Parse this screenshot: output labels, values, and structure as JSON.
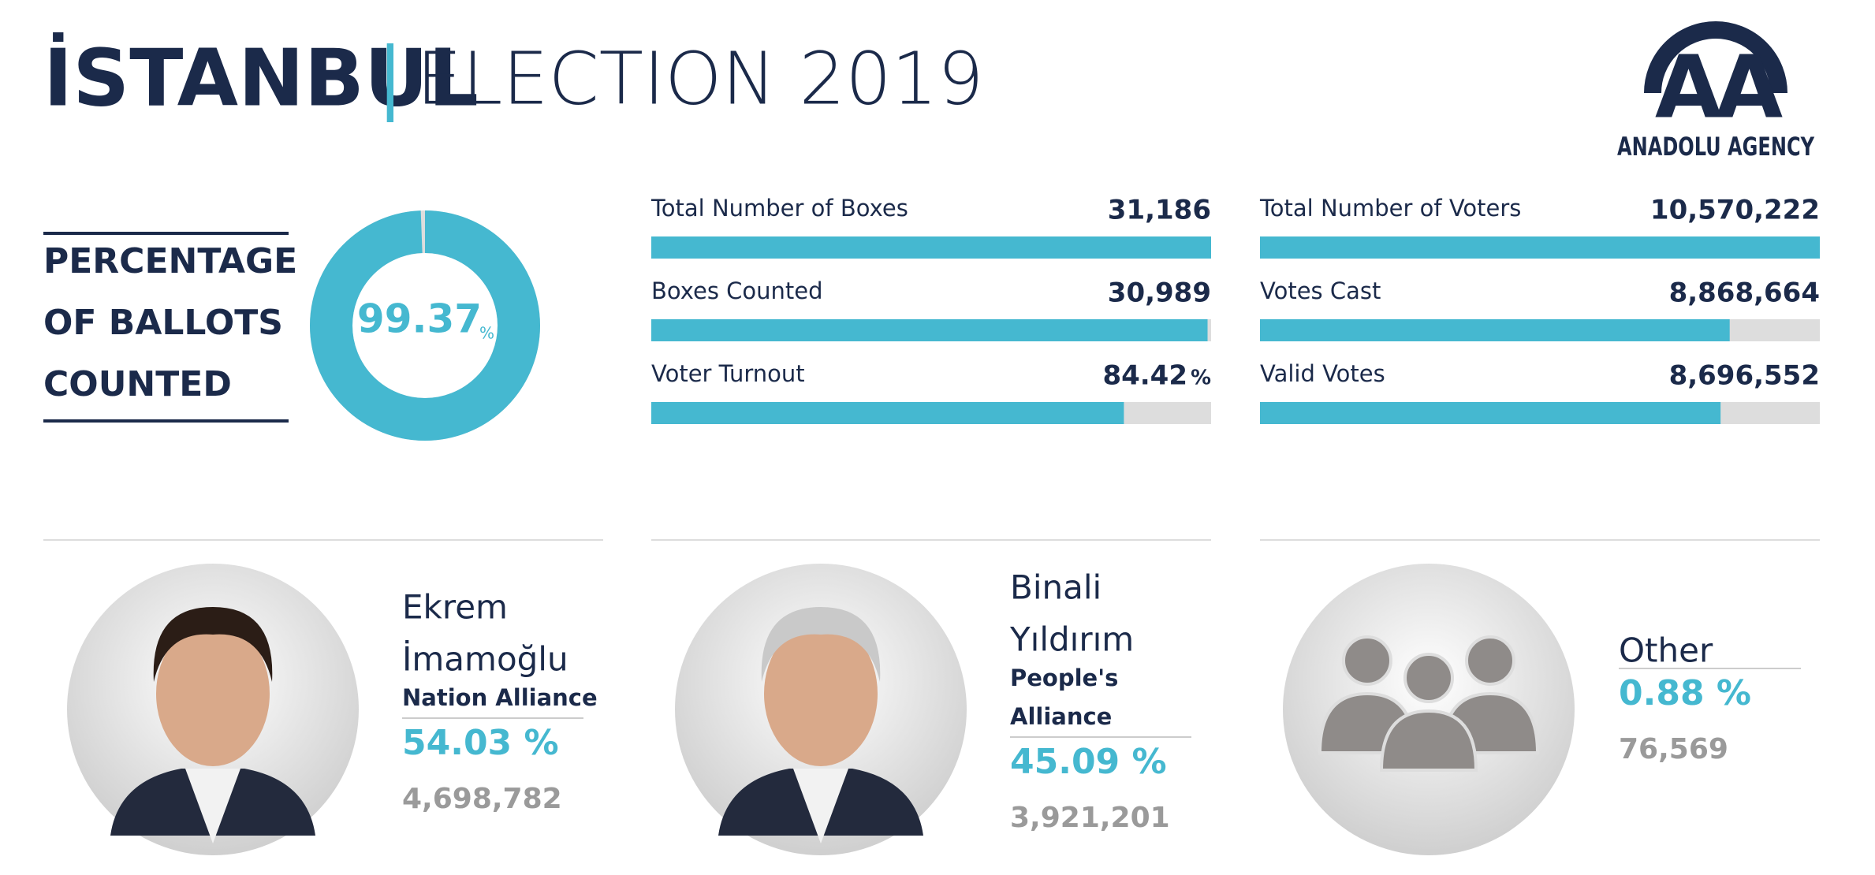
{
  "header": {
    "title_bold": "İSTANBUL",
    "separator": "|",
    "title_light": "ELECTION 2019",
    "logo_text": "ANADOLU AGENCY"
  },
  "ballots": {
    "heading": [
      "PERCENTAGE",
      "OF BALLOTS",
      "COUNTED"
    ],
    "value": 99.37,
    "unit": "%"
  },
  "stats": [
    [
      {
        "label": "Total Number of Boxes",
        "value": 31186,
        "value_label": "31,186"
      },
      {
        "label": "Boxes Counted",
        "value": 30989,
        "value_label": "30,989"
      },
      {
        "label": "Voter Turnout",
        "value": 84.42,
        "unit": "%"
      }
    ],
    [
      {
        "label": "Total Number of Voters",
        "value": 10570222,
        "value_label": "10,570,222"
      },
      {
        "label": "Votes Cast",
        "value": 8868664,
        "value_label": "8,868,664"
      },
      {
        "label": "Valid Votes",
        "value": 8696552,
        "value_label": "8,696,552"
      }
    ]
  ],
  "candidates": [
    {
      "name": [
        "Ekrem",
        "İmamoğlu"
      ],
      "alliance": [
        "Nation Alliance"
      ],
      "percent": "54.03 %",
      "votes": "4,698,782"
    },
    {
      "name": [
        "Binali",
        "Yıldırım"
      ],
      "alliance": [
        "People's",
        "Alliance"
      ],
      "percent": "45.09 %",
      "votes": "3,921,201"
    },
    {
      "name": [
        "Other"
      ],
      "alliance": [],
      "percent": "0.88 %",
      "votes": "76,569"
    }
  ]
}
